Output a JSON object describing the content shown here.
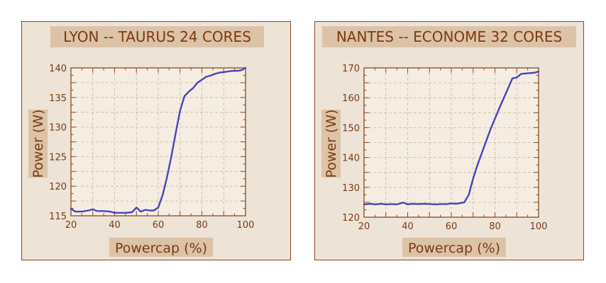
{
  "chart_data": [
    {
      "type": "line",
      "title": "LYON -- TAURUS 24 CORES",
      "xlabel": "Powercap (%)",
      "ylabel": "Power (W)",
      "xlim": [
        20,
        100
      ],
      "ylim": [
        115,
        140
      ],
      "xticks": [
        "20",
        "40",
        "60",
        "80",
        "100"
      ],
      "yticks": [
        "115",
        "120",
        "125",
        "130",
        "135",
        "140"
      ],
      "grid": true,
      "series": [
        {
          "color": "#4546b8",
          "x": [
            20,
            22,
            25,
            28,
            30,
            32,
            35,
            38,
            40,
            42,
            45,
            48,
            50,
            52,
            54,
            56,
            58,
            60,
            62,
            64,
            66,
            68,
            70,
            72,
            74,
            76,
            78,
            80,
            82,
            84,
            86,
            88,
            90,
            92,
            94,
            96,
            98,
            100
          ],
          "y": [
            116.2,
            115.7,
            115.7,
            115.9,
            116.1,
            115.8,
            115.8,
            115.7,
            115.5,
            115.5,
            115.5,
            115.6,
            116.4,
            115.7,
            116.0,
            115.9,
            115.9,
            116.4,
            118.5,
            121.5,
            125.0,
            129.0,
            132.8,
            135.2,
            136.0,
            136.6,
            137.5,
            138.0,
            138.5,
            138.7,
            139.0,
            139.2,
            139.3,
            139.4,
            139.5,
            139.5,
            139.6,
            140.0
          ]
        }
      ]
    },
    {
      "type": "line",
      "title": "NANTES -- ECONOME 32 CORES",
      "xlabel": "Powercap (%)",
      "ylabel": "Power (W)",
      "xlim": [
        20,
        100
      ],
      "ylim": [
        120,
        170
      ],
      "xticks": [
        "20",
        "40",
        "60",
        "80",
        "100"
      ],
      "yticks": [
        "120",
        "130",
        "140",
        "150",
        "160",
        "170"
      ],
      "grid": true,
      "series": [
        {
          "color": "#4546b8",
          "x": [
            20,
            23,
            25,
            28,
            30,
            33,
            35,
            38,
            40,
            42,
            45,
            48,
            50,
            53,
            55,
            58,
            60,
            62,
            64,
            66,
            68,
            70,
            72,
            75,
            78,
            80,
            82,
            85,
            88,
            90,
            92,
            95,
            98,
            100
          ],
          "y": [
            124.3,
            124.5,
            124.3,
            124.5,
            124.3,
            124.4,
            124.3,
            124.9,
            124.3,
            124.5,
            124.4,
            124.5,
            124.4,
            124.3,
            124.4,
            124.4,
            124.6,
            124.5,
            124.7,
            125.0,
            127.5,
            133.0,
            137.5,
            143.5,
            149.5,
            153.0,
            156.5,
            161.5,
            166.5,
            166.8,
            168.0,
            168.2,
            168.4,
            168.8
          ]
        }
      ]
    }
  ]
}
